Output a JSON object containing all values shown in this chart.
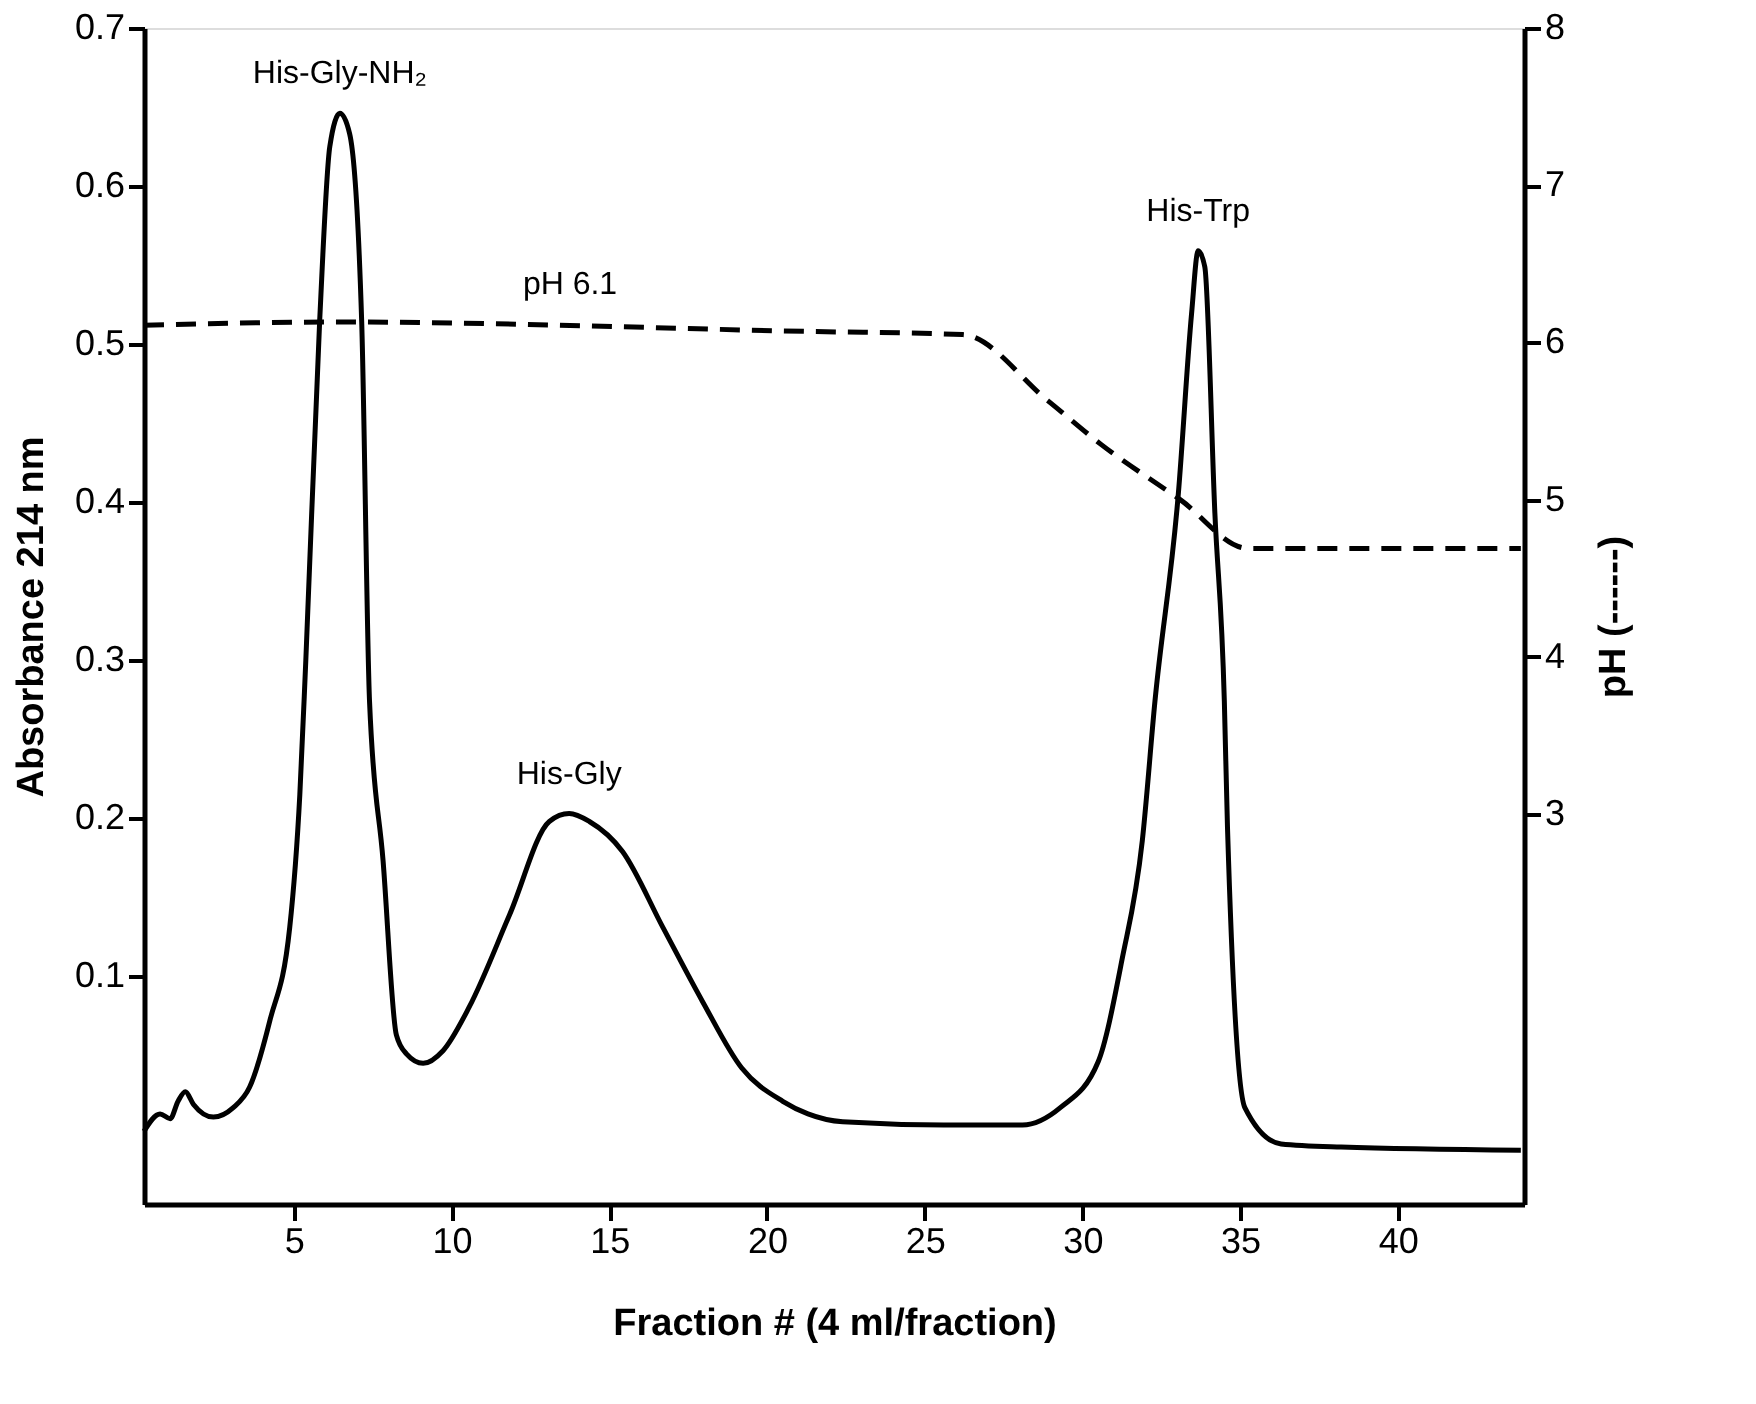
{
  "chart_data": {
    "type": "line",
    "xlabel": "Fraction # (4 ml/fraction)",
    "ylabel": "Absorbance 214 nm",
    "y2label": "pH (------)",
    "xlim": [
      0.25,
      44
    ],
    "xticks": [
      5,
      10,
      15,
      20,
      25,
      30,
      35,
      40
    ],
    "ylim": [
      -0.044,
      0.7
    ],
    "yticks": [
      0.1,
      0.2,
      0.3,
      0.4,
      0.5,
      0.6,
      0.7
    ],
    "y2lim": [
      0.52,
      8
    ],
    "y2ticks": [
      3,
      4,
      5,
      6,
      7,
      8
    ],
    "grid": false,
    "series": [
      {
        "color": "#000000",
        "line_style": "solid",
        "x": [
          0.25,
          0.76,
          1.08,
          1.33,
          1.56,
          1.82,
          2.45,
          3.08,
          3.6,
          4.24,
          4.87,
          5.19,
          5.38,
          5.82,
          6.14,
          6.46,
          6.77,
          7.15,
          7.4,
          7.83,
          8.25,
          8.57,
          9.1,
          9.73,
          10.57,
          11.84,
          13.1,
          13.73,
          14.37,
          15.42,
          16.7,
          17.96,
          19.2,
          20.5,
          21.3,
          22.4,
          25.6,
          28.1,
          29.3,
          30.5,
          31.25,
          31.9,
          32.3,
          33.04,
          33.46,
          33.67,
          33.88,
          34.2,
          34.5,
          34.6,
          35.15,
          36.3,
          38.2,
          43.9
        ],
        "values": [
          0.002,
          0.013,
          0.01,
          0.021,
          0.027,
          0.019,
          0.011,
          0.017,
          0.03,
          0.072,
          0.131,
          0.215,
          0.3,
          0.515,
          0.625,
          0.646,
          0.633,
          0.515,
          0.274,
          0.173,
          0.063,
          0.051,
          0.045,
          0.053,
          0.081,
          0.139,
          0.198,
          0.203,
          0.198,
          0.179,
          0.131,
          0.084,
          0.042,
          0.021,
          0.013,
          0.008,
          0.006,
          0.006,
          0.017,
          0.046,
          0.11,
          0.186,
          0.274,
          0.405,
          0.519,
          0.559,
          0.549,
          0.393,
          0.274,
          0.194,
          0.017,
          -0.006,
          -0.008,
          -0.01
        ]
      },
      {
        "color": "#000000",
        "line_style": "dashed",
        "axis": "y2",
        "x": [
          0.25,
          6.5,
          21.3,
          26.2,
          28.9,
          30.6,
          33.1,
          35.25,
          43.9
        ],
        "values": [
          6.11,
          6.13,
          6.07,
          6.05,
          5.63,
          5.35,
          5.0,
          4.69,
          4.69
        ]
      }
    ],
    "annotations": [
      {
        "text": "His-Gly-NH₂",
        "x": 6.46,
        "y": 0.646
      },
      {
        "text": "His-Gly",
        "x": 13.73,
        "y": 0.203
      },
      {
        "text": "His-Trp",
        "x": 33.67,
        "y": 0.559
      },
      "pH 6.1"
    ]
  }
}
